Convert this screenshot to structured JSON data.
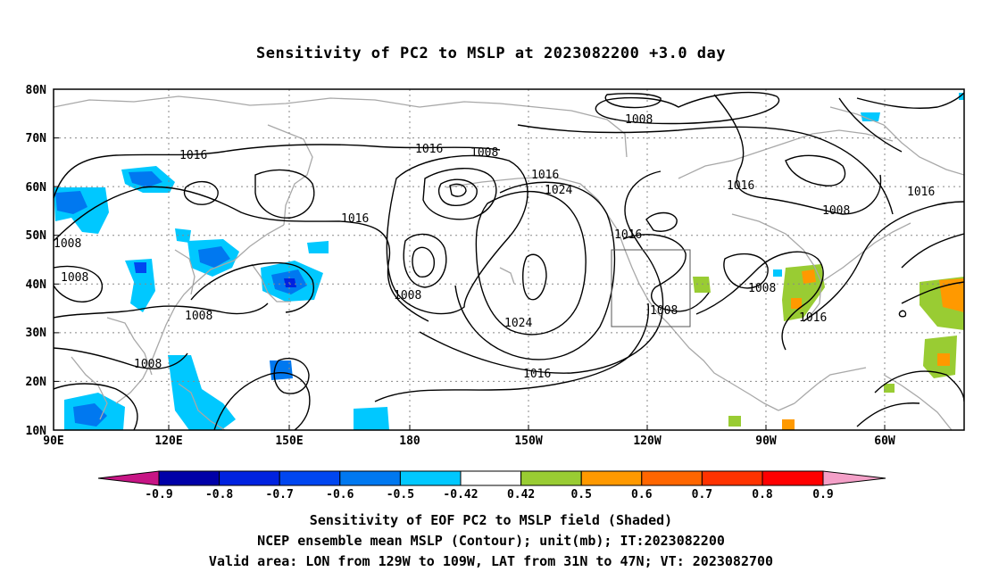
{
  "title": "Sensitivity of PC2 to MSLP at 2023082200 +3.0 day",
  "lat_labels": [
    "80N",
    "70N",
    "60N",
    "50N",
    "40N",
    "30N",
    "20N",
    "10N"
  ],
  "lon_labels": [
    "90E",
    "120E",
    "150E",
    "180",
    "150W",
    "120W",
    "90W",
    "60W"
  ],
  "contour_labels": [
    "1016",
    "1016",
    "1008",
    "1016",
    "1024",
    "1008",
    "1016",
    "1016",
    "1008",
    "1016",
    "1008",
    "1008",
    "1008",
    "1008",
    "1008",
    "1024",
    "1016",
    "1016",
    "1008",
    "1008",
    "1016",
    "1008",
    "1016"
  ],
  "colorbar": {
    "tick_labels": [
      "-0.9",
      "-0.8",
      "-0.7",
      "-0.6",
      "-0.5",
      "-0.42",
      "0.42",
      "0.5",
      "0.6",
      "0.7",
      "0.8",
      "0.9"
    ],
    "colors": [
      "#c71585",
      "#0000a8",
      "#0022e0",
      "#0046f0",
      "#0078f0",
      "#00c8ff",
      "#ffffff",
      "#99cc33",
      "#ff9900",
      "#ff6600",
      "#ff3300",
      "#ff0000",
      "#f4a0c8"
    ]
  },
  "captions": [
    "Sensitivity of EOF PC2 to MSLP field (Shaded)",
    "NCEP ensemble mean MSLP (Contour); unit(mb); IT:2023082200",
    "Valid area: LON from 129W to 109W, LAT from 31N to 47N; VT: 2023082700"
  ],
  "valid_area": {
    "lon_min": -129,
    "lon_max": -109,
    "lat_min": 31,
    "lat_max": 47
  },
  "colors": {
    "contour": "#000000",
    "coast": "#a8a8a8",
    "grid": "#888888"
  }
}
